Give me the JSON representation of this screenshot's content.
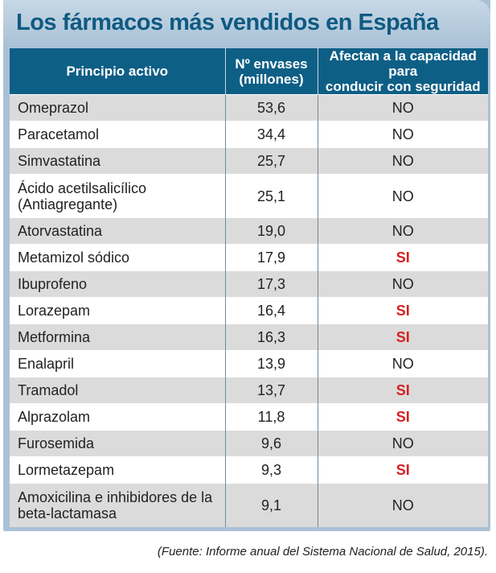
{
  "title": "Los fármacos más vendidos en España",
  "headers": {
    "col1": "Principio activo",
    "col2_line1": "Nº envases",
    "col2_line2": "(millones)",
    "col3_line1": "Afectan a la capacidad para",
    "col3_line2": "conducir con seguridad"
  },
  "rows": [
    {
      "drug": "Omeprazol",
      "drug2": "",
      "units": "53,6",
      "affects": "NO"
    },
    {
      "drug": "Paracetamol",
      "drug2": "",
      "units": "34,4",
      "affects": "NO"
    },
    {
      "drug": "Simvastatina",
      "drug2": "",
      "units": "25,7",
      "affects": "NO"
    },
    {
      "drug": "Ácido acetilsalicílico",
      "drug2": "(Antiagregante)",
      "units": "25,1",
      "affects": "NO"
    },
    {
      "drug": "Atorvastatina",
      "drug2": "",
      "units": "19,0",
      "affects": "NO"
    },
    {
      "drug": "Metamizol sódico",
      "drug2": "",
      "units": "17,9",
      "affects": "SI"
    },
    {
      "drug": "Ibuprofeno",
      "drug2": "",
      "units": "17,3",
      "affects": "NO"
    },
    {
      "drug": "Lorazepam",
      "drug2": "",
      "units": "16,4",
      "affects": "SI"
    },
    {
      "drug": "Metformina",
      "drug2": "",
      "units": "16,3",
      "affects": "SI"
    },
    {
      "drug": "Enalapril",
      "drug2": "",
      "units": "13,9",
      "affects": "NO"
    },
    {
      "drug": "Tramadol",
      "drug2": "",
      "units": "13,7",
      "affects": "SI"
    },
    {
      "drug": "Alprazolam",
      "drug2": "",
      "units": "11,8",
      "affects": "SI"
    },
    {
      "drug": "Furosemida",
      "drug2": "",
      "units": "9,6",
      "affects": "NO"
    },
    {
      "drug": "Lormetazepam",
      "drug2": "",
      "units": "9,3",
      "affects": "SI"
    },
    {
      "drug": "Amoxicilina e inhibidores de la",
      "drug2": "beta-lactamasa",
      "units": "9,1",
      "affects": "NO"
    }
  ],
  "source": "(Fuente: Informe anual del Sistema Nacional de Salud, 2015).",
  "colors": {
    "header_bg": "#0e5f86",
    "title": "#0e5a82",
    "frame": "#a9c1d6",
    "si": "#d62020",
    "zebra": "#dbdbdb"
  }
}
